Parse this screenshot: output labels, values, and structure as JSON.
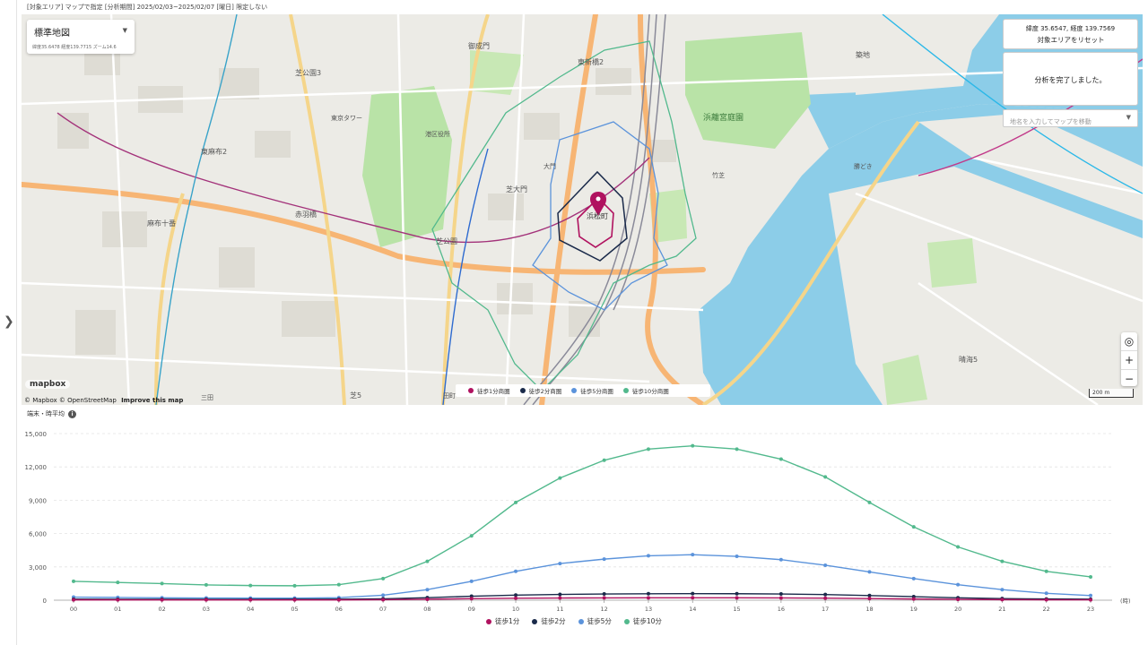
{
  "header": {
    "text": "[対象エリア] マップで指定 [分析期間] 2025/02/03~2025/02/07 [曜日] 限定しない"
  },
  "map": {
    "style_select": {
      "label": "標準地図",
      "coords": "緯度35.6478 経度139.7715 ズーム14.6"
    },
    "coord_panel": {
      "text": "緯度 35.6547, 経度 139.7569",
      "reset_label": "対象エリアをリセット"
    },
    "status_panel": {
      "text": "分析を完了しました。"
    },
    "search": {
      "placeholder": "地名を入力してマップを移動"
    },
    "zoom_in": "+",
    "zoom_out": "−",
    "scale_label": "200 m",
    "attribution": "© Mapbox © OpenStreetMap",
    "improve_link": "Improve this map",
    "logo": "mapbox",
    "place_labels": [
      {
        "t": "芝公園3"
      },
      {
        "t": "東新橋2"
      },
      {
        "t": "築地"
      },
      {
        "t": "東麻布2"
      },
      {
        "t": "浜離宮庭園"
      },
      {
        "t": "芝大門"
      },
      {
        "t": "浜松町"
      },
      {
        "t": "赤羽橋"
      },
      {
        "t": "麻布十番"
      },
      {
        "t": "芝公園"
      },
      {
        "t": "御成門"
      },
      {
        "t": "東京タワー"
      },
      {
        "t": "港区役所"
      },
      {
        "t": "大門"
      },
      {
        "t": "勝どき"
      },
      {
        "t": "晴海5"
      },
      {
        "t": "芝5"
      },
      {
        "t": "竹芝"
      },
      {
        "t": "田町"
      },
      {
        "t": "三田"
      }
    ],
    "legend": [
      {
        "label": "徒歩1分商圏",
        "color": "#b0125f"
      },
      {
        "label": "徒歩2分商圏",
        "color": "#1a2a4a"
      },
      {
        "label": "徒歩5分商圏",
        "color": "#5b93db"
      },
      {
        "label": "徒歩10分商圏",
        "color": "#52b98d"
      }
    ]
  },
  "chart_title": "端末・時平均",
  "chart_data": {
    "type": "line",
    "x": [
      "00",
      "01",
      "02",
      "03",
      "04",
      "05",
      "06",
      "07",
      "08",
      "09",
      "10",
      "11",
      "12",
      "13",
      "14",
      "15",
      "16",
      "17",
      "18",
      "19",
      "20",
      "21",
      "22",
      "23"
    ],
    "xlabel": "(時)",
    "ylim": [
      0,
      15000
    ],
    "yticks": [
      "0",
      "3,000",
      "6,000",
      "9,000",
      "12,000",
      "15,000"
    ],
    "grid": true,
    "legend_position": "bottom",
    "series": [
      {
        "name": "徒歩1分",
        "color": "#b0125f",
        "values": [
          30,
          30,
          28,
          27,
          27,
          27,
          29,
          45,
          85,
          140,
          180,
          200,
          210,
          215,
          218,
          215,
          205,
          185,
          150,
          110,
          75,
          50,
          38,
          32
        ]
      },
      {
        "name": "徒歩2分",
        "color": "#1a2a4a",
        "values": [
          90,
          85,
          80,
          78,
          78,
          80,
          90,
          130,
          230,
          360,
          460,
          520,
          560,
          580,
          590,
          585,
          560,
          510,
          420,
          320,
          220,
          150,
          110,
          95
        ]
      },
      {
        "name": "徒歩5分",
        "color": "#5b93db",
        "values": [
          280,
          250,
          220,
          200,
          190,
          190,
          230,
          450,
          950,
          1700,
          2600,
          3300,
          3700,
          4000,
          4100,
          3950,
          3650,
          3150,
          2550,
          1950,
          1400,
          950,
          620,
          420
        ]
      },
      {
        "name": "徒歩10分",
        "color": "#52b98d",
        "values": [
          1700,
          1600,
          1500,
          1380,
          1320,
          1300,
          1400,
          1950,
          3500,
          5800,
          8800,
          11000,
          12600,
          13600,
          13900,
          13600,
          12700,
          11100,
          8800,
          6600,
          4800,
          3500,
          2600,
          2100
        ]
      }
    ]
  }
}
